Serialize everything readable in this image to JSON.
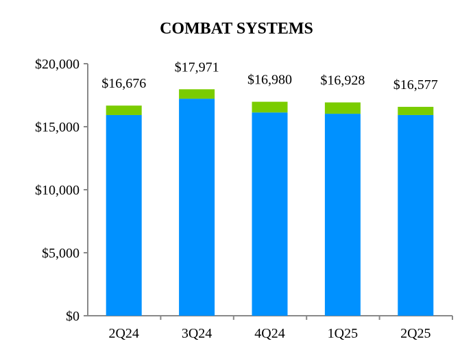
{
  "chart_data": {
    "type": "bar",
    "stacked": true,
    "title": "COMBAT SYSTEMS",
    "xlabel": "",
    "ylabel": "",
    "categories": [
      "2Q24",
      "3Q24",
      "4Q24",
      "1Q25",
      "2Q25"
    ],
    "series": [
      {
        "values": [
          15926,
          17221,
          16130,
          16028,
          15927
        ],
        "color": "#0091FF"
      },
      {
        "values": [
          750,
          750,
          850,
          900,
          650
        ],
        "color": "#7ACC00"
      }
    ],
    "totals": [
      16676,
      17971,
      16980,
      16928,
      16577
    ],
    "total_labels": [
      "$16,676",
      "$17,971",
      "$16,980",
      "$16,928",
      "$16,577"
    ],
    "ylim": [
      0,
      20000
    ],
    "yticks": [
      0,
      5000,
      10000,
      15000,
      20000
    ],
    "ytick_labels": [
      "$0",
      "$5,000",
      "$10,000",
      "$15,000",
      "$20,000"
    ],
    "grid": false,
    "legend": "none"
  }
}
